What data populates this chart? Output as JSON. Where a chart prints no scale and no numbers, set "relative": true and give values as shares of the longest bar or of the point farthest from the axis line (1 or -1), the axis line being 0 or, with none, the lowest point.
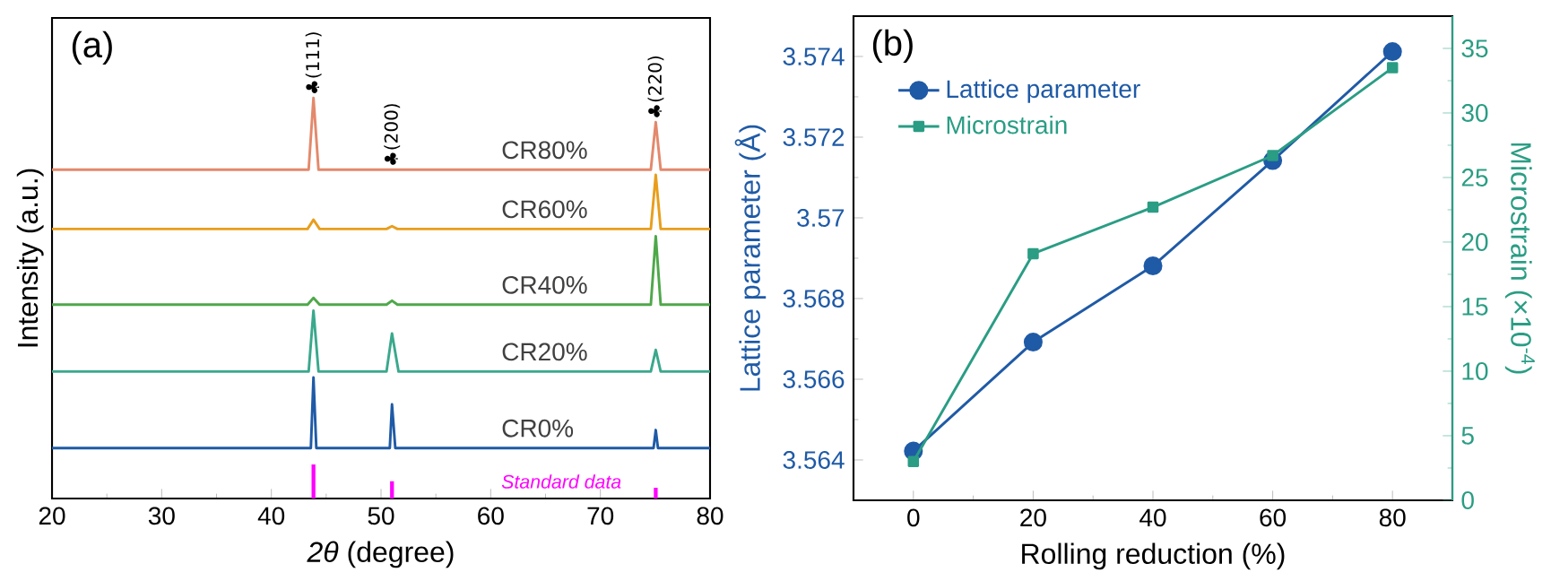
{
  "chart_data": [
    {
      "type": "line",
      "title": "(a)",
      "xlabel": "*2θ* (degree)",
      "ylabel": "Intensity (a.u.)",
      "relative": true,
      "xlim": [
        20,
        80
      ],
      "xticks": [
        20,
        30,
        40,
        50,
        60,
        70,
        80
      ],
      "legend": false,
      "series": [
        {
          "name": "CR80%",
          "color": "#e3896c",
          "x": [
            20,
            43.4,
            43.84,
            44.3,
            74.6,
            75.05,
            75.5,
            80
          ],
          "values": [
            0.821,
            0.821,
            1.0,
            0.821,
            0.821,
            0.94,
            0.821,
            0.821
          ]
        },
        {
          "name": "CR60%",
          "color": "#e89e1c",
          "x": [
            20,
            43.3,
            43.84,
            44.4,
            50.5,
            51.0,
            51.5,
            74.6,
            75.05,
            75.5,
            80
          ],
          "values": [
            0.673,
            0.673,
            0.696,
            0.673,
            0.673,
            0.68,
            0.673,
            0.673,
            0.808,
            0.673,
            0.673
          ]
        },
        {
          "name": "CR40%",
          "color": "#4ea84a",
          "x": [
            20,
            43.3,
            43.84,
            44.4,
            50.5,
            51.0,
            51.5,
            74.6,
            75.05,
            75.5,
            80
          ],
          "values": [
            0.484,
            0.484,
            0.501,
            0.484,
            0.484,
            0.494,
            0.484,
            0.484,
            0.655,
            0.484,
            0.484
          ]
        },
        {
          "name": "CR20%",
          "color": "#3aa88c",
          "x": [
            20,
            43.4,
            43.84,
            44.3,
            50.5,
            51.0,
            51.6,
            74.6,
            75.05,
            75.5,
            80
          ],
          "values": [
            0.317,
            0.317,
            0.469,
            0.317,
            0.317,
            0.412,
            0.317,
            0.317,
            0.371,
            0.317,
            0.317
          ]
        },
        {
          "name": "CR0%",
          "color": "#1f5aa6",
          "x": [
            20,
            43.6,
            43.84,
            44.1,
            50.8,
            51.0,
            51.3,
            74.85,
            75.05,
            75.25,
            80
          ],
          "values": [
            0.126,
            0.126,
            0.302,
            0.126,
            0.126,
            0.235,
            0.126,
            0.126,
            0.171,
            0.126,
            0.126
          ]
        },
        {
          "name": "Standard data",
          "type": "bar",
          "color": "#ff00ff",
          "x": [
            43.84,
            51.0,
            75.05
          ],
          "values": [
            0.085,
            0.043,
            0.027
          ]
        }
      ],
      "annotations": [
        {
          "text": "♣(111)",
          "x": 43.84,
          "y": 1.0
        },
        {
          "text": "♣(200)",
          "x": 51.0,
          "y": 0.821
        },
        {
          "text": "♣(220)",
          "x": 75.05,
          "y": 0.94
        }
      ]
    },
    {
      "type": "line",
      "title": "(b)",
      "xlabel": "Rolling reduction (%)",
      "ylabel": "Lattice parameter (Å)",
      "y2label": "Microstrain (×10$^{-4}$)",
      "x": [
        0,
        20,
        40,
        60,
        80
      ],
      "xlim": [
        -10,
        90
      ],
      "xticks": [
        0,
        20,
        40,
        60,
        80
      ],
      "ylim": [
        3.563,
        3.575
      ],
      "yticks": [
        3.564,
        3.566,
        3.568,
        3.57,
        3.572,
        3.574
      ],
      "y2lim": [
        0,
        37.5
      ],
      "y2ticks": [
        0,
        5,
        10,
        15,
        20,
        25,
        30,
        35
      ],
      "legend": "top left",
      "series": [
        {
          "name": "Lattice parameter",
          "color": "#1f5aa6",
          "marker": "circle",
          "values": [
            3.56422,
            3.56692,
            3.56881,
            3.57142,
            3.57412
          ]
        },
        {
          "name": "Microstrain",
          "color": "#2a9d84",
          "marker": "square",
          "axis": "y2",
          "values": [
            3.0,
            19.1,
            22.7,
            26.7,
            33.5
          ]
        }
      ]
    }
  ]
}
